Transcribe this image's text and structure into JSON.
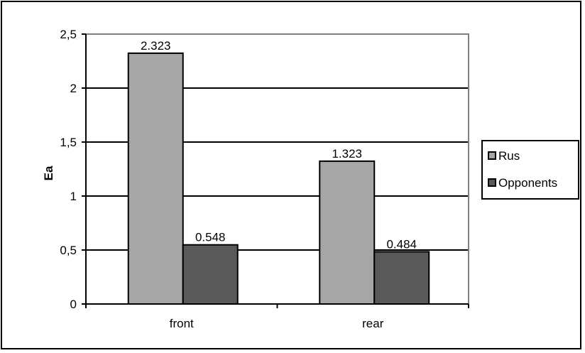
{
  "chart_data": {
    "type": "bar",
    "title": "",
    "xlabel": "",
    "ylabel": "Ea",
    "categories": [
      "front",
      "rear"
    ],
    "series": [
      {
        "name": "Rus",
        "values": [
          2.323,
          1.323
        ],
        "color": "#a6a6a6"
      },
      {
        "name": "Opponents",
        "values": [
          0.548,
          0.484
        ],
        "color": "#595959"
      }
    ],
    "data_labels": [
      [
        "2.323",
        "1.323"
      ],
      [
        "0.548",
        "0.484"
      ]
    ],
    "ylim": [
      0,
      2.5
    ],
    "yticks": [
      "0",
      "0,5",
      "1",
      "1,5",
      "2",
      "2,5"
    ],
    "grid": true,
    "legend_position": "right",
    "plot_background": "#ffffff",
    "plot_border_color": "#808080",
    "gridline_color": "#000000"
  }
}
